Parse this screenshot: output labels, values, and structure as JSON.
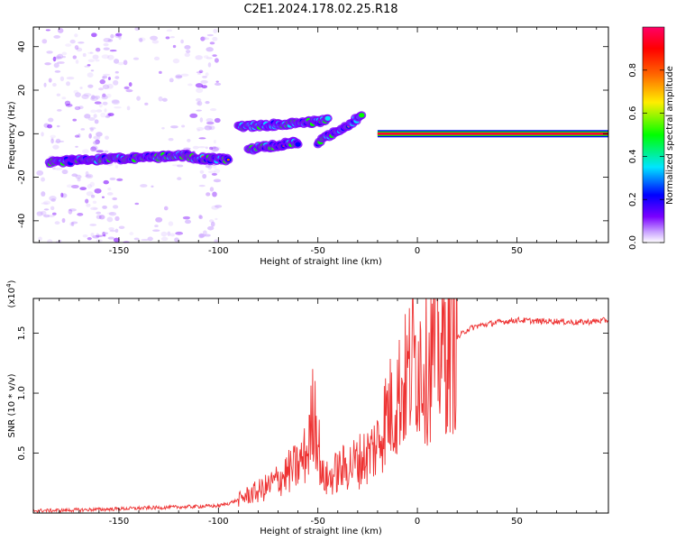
{
  "title": "C2E1.2024.178.02.25.R18",
  "chart_data": [
    {
      "type": "heatmap",
      "name": "spectrogram",
      "title": "C2E1.2024.178.02.25.R18",
      "xlabel": "Height of straight line (km)",
      "ylabel": "Frequency (Hz)",
      "xlim": [
        -193,
        96
      ],
      "ylim": [
        -50,
        49
      ],
      "xticks": [
        -150,
        -100,
        -50,
        0,
        50
      ],
      "yticks": [
        -40,
        -20,
        0,
        20,
        40
      ],
      "colorbar": {
        "label": "Normalized spectral amplitude",
        "range": [
          0,
          1
        ],
        "ticks": [
          0.0,
          0.2,
          0.4,
          0.6,
          0.8
        ],
        "tick_labels": [
          "0.0",
          "0.2",
          "0.4",
          "0.6",
          "0.8"
        ],
        "colors": [
          "#ffffff",
          "#7a00ff",
          "#0000ff",
          "#00e5ff",
          "#00ff00",
          "#ffee00",
          "#ff6600",
          "#ff0000",
          "#ff0066"
        ]
      },
      "bands": [
        {
          "name": "low-frequency track",
          "x_from": -185,
          "x_to": -115,
          "y_from": -13,
          "y_to": -10
        },
        {
          "name": "low-frequency track tail",
          "x_from": -115,
          "x_to": -95,
          "y_from": -11,
          "y_to": -12
        },
        {
          "name": "upper branch",
          "x_from": -90,
          "x_to": -45,
          "y_from": 3,
          "y_to": 6
        },
        {
          "name": "lower branch",
          "x_from": -85,
          "x_to": -60,
          "y_from": -7,
          "y_to": -4
        },
        {
          "name": "rising branch",
          "x_from": -50,
          "x_to": -28,
          "y_from": -4,
          "y_to": 8
        },
        {
          "name": "carrier line",
          "x_from": -20,
          "x_to": 96,
          "y_from": 0,
          "y_to": 0
        }
      ]
    },
    {
      "type": "line",
      "name": "snr",
      "title": "",
      "xlabel": "Height of straight line (km)",
      "ylabel": "SNR (10 * v/v)",
      "y_scale_label": "(x10",
      "y_scale_exp": "4",
      "y_scale_close": ")",
      "xlim": [
        -193,
        96
      ],
      "ylim": [
        0,
        17900
      ],
      "xticks": [
        -150,
        -100,
        -50,
        0,
        50
      ],
      "yticks": [
        5000,
        10000,
        15000
      ],
      "ytick_labels": [
        "0.5",
        "1.0",
        "1.5"
      ],
      "color": "#ee3333",
      "series": [
        {
          "name": "SNR",
          "x": [
            -193,
            -180,
            -170,
            -160,
            -150,
            -140,
            -130,
            -120,
            -110,
            -100,
            -95,
            -90,
            -85,
            -80,
            -75,
            -70,
            -65,
            -60,
            -55,
            -52,
            -50,
            -48,
            -45,
            -40,
            -35,
            -30,
            -25,
            -20,
            -18,
            -15,
            -12,
            -10,
            -8,
            -5,
            -3,
            0,
            3,
            5,
            8,
            10,
            12,
            15,
            18,
            20,
            25,
            30,
            40,
            50,
            60,
            70,
            80,
            90,
            96
          ],
          "y": [
            200,
            220,
            260,
            300,
            350,
            400,
            450,
            500,
            550,
            600,
            800,
            1100,
            1500,
            1800,
            2200,
            2800,
            3400,
            3900,
            5200,
            9000,
            6500,
            3000,
            2800,
            3500,
            3900,
            4300,
            4800,
            5800,
            6900,
            8500,
            8800,
            9800,
            10400,
            11200,
            12400,
            13100,
            12800,
            12400,
            13300,
            14100,
            13400,
            13900,
            14300,
            14600,
            15300,
            15600,
            15900,
            16100,
            16000,
            16000,
            15900,
            16000,
            16100
          ]
        }
      ]
    }
  ]
}
